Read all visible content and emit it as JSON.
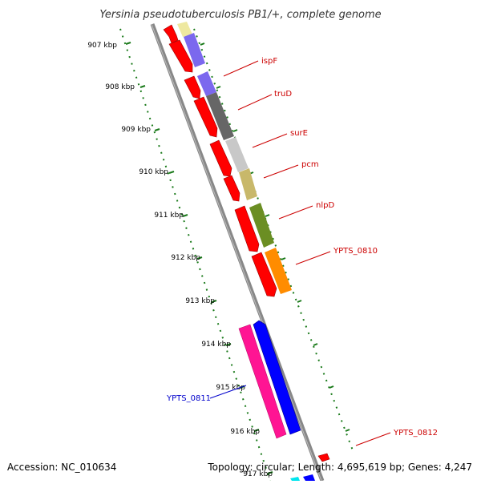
{
  "title": "Yersinia pseudotuberculosis PB1/+, complete genome",
  "accession": "Accession: NC_010634",
  "topology": "Topology: circular; Length: 4,695,619 bp; Genes: 4,247",
  "ticks": [
    {
      "label": "907 kbp"
    },
    {
      "label": "908 kbp"
    },
    {
      "label": "909 kbp"
    },
    {
      "label": "910 kbp"
    },
    {
      "label": "911 kbp"
    },
    {
      "label": "912 kbp"
    },
    {
      "label": "913 kbp"
    },
    {
      "label": "914 kbp"
    },
    {
      "label": "915 kbp"
    },
    {
      "label": "916 kbp"
    },
    {
      "label": "917 kbp"
    }
  ],
  "gene_labels": [
    {
      "name": "ispF",
      "color": "#cc0000"
    },
    {
      "name": "truD",
      "color": "#cc0000"
    },
    {
      "name": "surE",
      "color": "#cc0000"
    },
    {
      "name": "pcm",
      "color": "#cc0000"
    },
    {
      "name": "nlpD",
      "color": "#cc0000"
    },
    {
      "name": "YPTS_0810",
      "color": "#cc0000"
    },
    {
      "name": "YPTS_0811",
      "color": "#0000cc"
    },
    {
      "name": "YPTS_0812",
      "color": "#cc0000"
    }
  ],
  "colors": {
    "backbone": "#888888",
    "cds": "#ff0000",
    "tick": "#1a7a1a",
    "label_forward": "#cc0000",
    "label_reverse": "#0000cc"
  }
}
